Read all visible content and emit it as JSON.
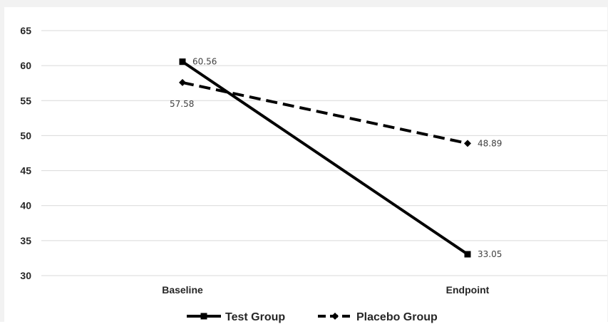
{
  "chart_data": {
    "type": "line",
    "categories": [
      "Baseline",
      "Endpoint"
    ],
    "ylim": [
      30,
      65
    ],
    "yticks": [
      30,
      35,
      40,
      45,
      50,
      55,
      60,
      65
    ],
    "grid": true,
    "legend_position": "bottom",
    "series": [
      {
        "name": "Test Group",
        "values": [
          60.56,
          33.05
        ],
        "labels": [
          "60.56",
          "33.05"
        ],
        "style": "solid",
        "marker": "square",
        "color": "#000000"
      },
      {
        "name": "Placebo Group",
        "values": [
          57.58,
          48.89
        ],
        "labels": [
          "57.58",
          "48.89"
        ],
        "style": "dashed",
        "marker": "diamond",
        "color": "#000000"
      }
    ]
  }
}
